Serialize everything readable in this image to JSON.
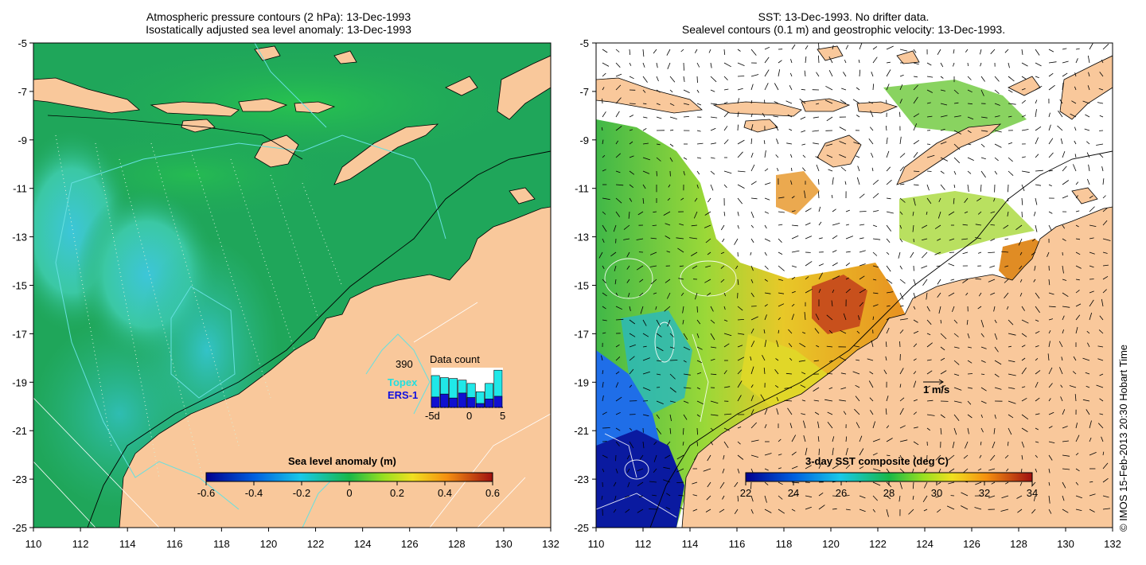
{
  "left_panel": {
    "title_line1": "Atmospheric pressure contours (2 hPa): 13-Dec-1993",
    "title_line2": "Isostatically adjusted sea level anomaly: 13-Dec-1993",
    "colorbar": {
      "title": "Sea level anomaly (m)",
      "ticks": [
        "-0.6",
        "-0.4",
        "-0.2",
        "0",
        "0.2",
        "0.4",
        "0.6"
      ]
    },
    "inset": {
      "title": "Data count",
      "max_label": "390",
      "topex_label": "Topex",
      "ers1_label": "ERS-1",
      "x_ticks": [
        "-5d",
        "0",
        "5"
      ],
      "topex_values": [
        0.77,
        0.72,
        0.7,
        0.66,
        0.58,
        0.38,
        0.58,
        0.9
      ],
      "ers1_values": [
        0.42,
        0.54,
        0.38,
        0.58,
        0.4,
        0.16,
        0.34,
        0.45
      ]
    }
  },
  "right_panel": {
    "title_line1": "SST: 13-Dec-1993. No drifter data.",
    "title_line2": "Sealevel contours (0.1 m) and geostrophic velocity: 13-Dec-1993.",
    "colorbar": {
      "title": "3-day SST composite (deg C)",
      "ticks": [
        "22",
        "24",
        "26",
        "28",
        "30",
        "32",
        "34"
      ]
    },
    "velocity_scale_label": "1 m/s"
  },
  "axes": {
    "x_ticks": [
      "110",
      "112",
      "114",
      "116",
      "118",
      "120",
      "122",
      "124",
      "126",
      "128",
      "130",
      "132"
    ],
    "y_ticks": [
      "-5",
      "-7",
      "-9",
      "-11",
      "-13",
      "-15",
      "-17",
      "-19",
      "-21",
      "-23",
      "-25"
    ],
    "xlim": [
      110,
      132
    ],
    "ylim": [
      -25,
      -5
    ]
  },
  "credit": "© IMOS 15-Feb-2013 20:30 Hobart Time",
  "colors": {
    "land": "#f9c89b",
    "ocean_left": "#1fa65a",
    "ocean_right_white": "#ffffff",
    "contour_cyan": "#66e0e0"
  }
}
